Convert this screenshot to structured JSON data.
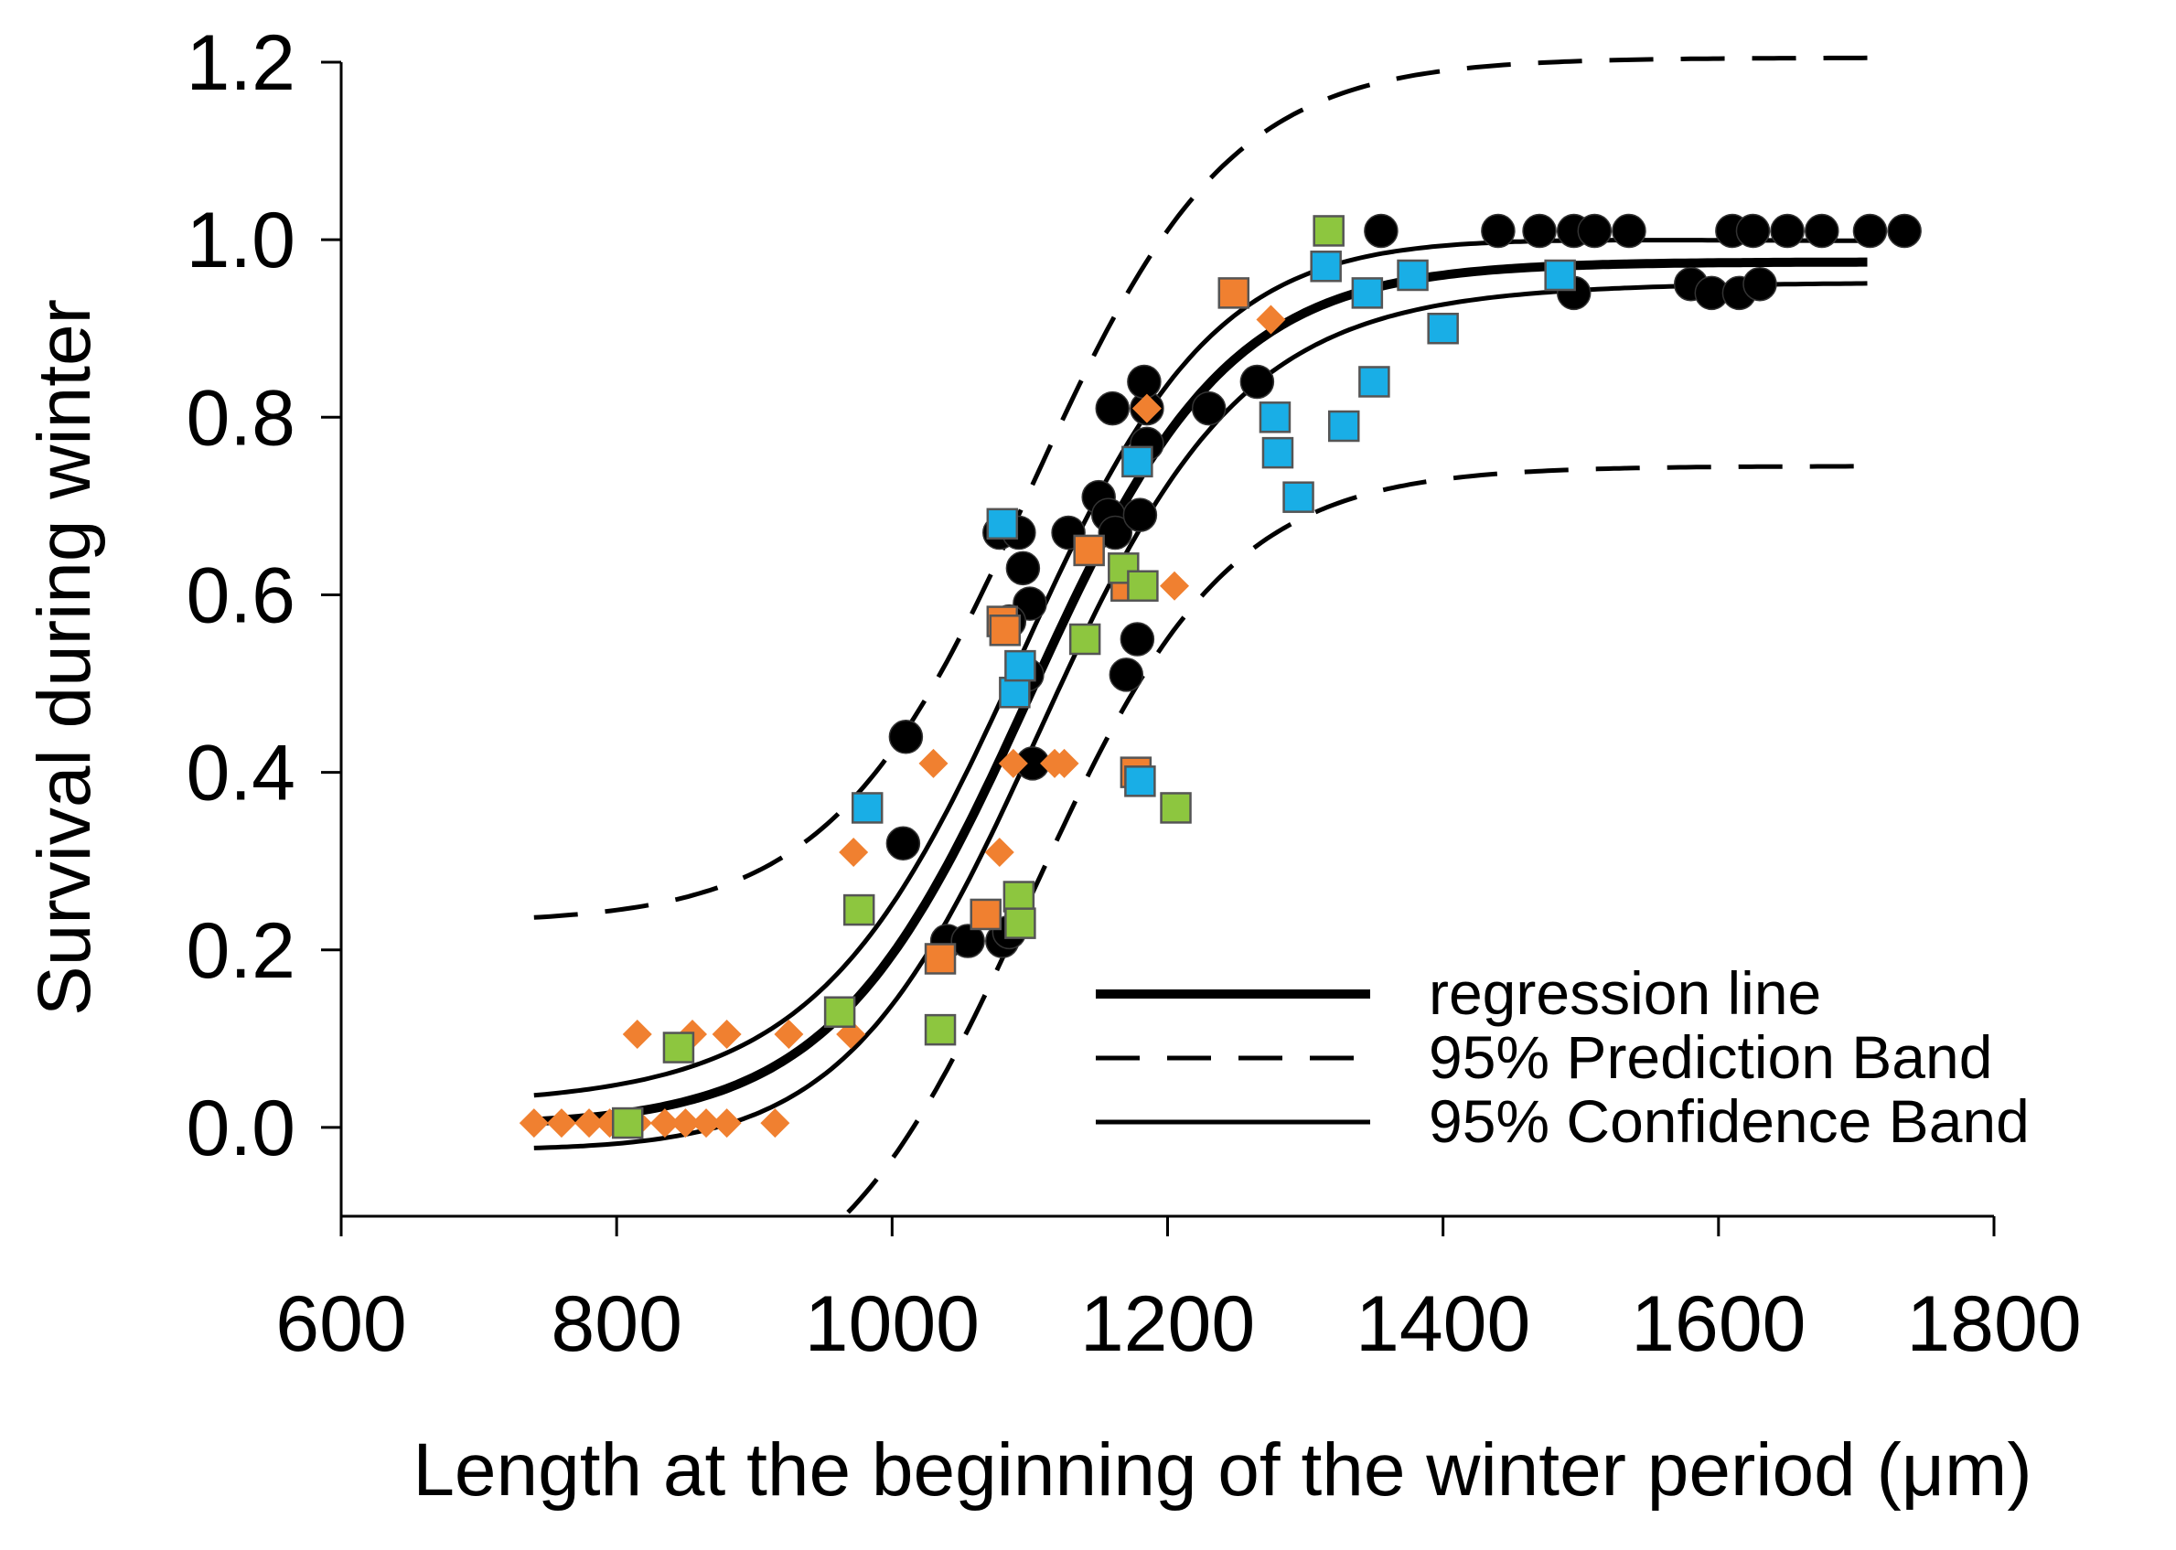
{
  "chart_data": {
    "type": "scatter",
    "title": "",
    "xlabel": "Length at the beginning of the winter period (μm)",
    "ylabel": "Survival during winter",
    "xlim": [
      600,
      1800
    ],
    "ylim": [
      -0.1,
      1.2
    ],
    "xticks": [
      600,
      800,
      1000,
      1200,
      1400,
      1600,
      1800
    ],
    "xtick_labels": [
      "600",
      "800",
      "1000",
      "1200",
      "1400",
      "1600",
      "1800"
    ],
    "yticks": [
      0.0,
      0.2,
      0.4,
      0.6,
      0.8,
      1.0,
      1.2
    ],
    "ytick_labels": [
      "0.0",
      "0.2",
      "0.4",
      "0.6",
      "0.8",
      "1.0",
      "1.2"
    ],
    "grid": false,
    "legend_position": "bottom-right",
    "legend": [
      {
        "label": "regression line",
        "style": "thick-solid"
      },
      {
        "label": "95% Prediction Band",
        "style": "dashed"
      },
      {
        "label": "95% Confidence Band",
        "style": "solid"
      }
    ],
    "colors": {
      "black": "#000000",
      "orange": "#f08030",
      "blue": "#19aee6",
      "green": "#8dc63f",
      "outline": "#555555"
    },
    "regression": {
      "model": "logistic",
      "x_range": [
        740,
        1710
      ],
      "asymptote": 0.975,
      "midpoint": 1100,
      "scale": 72,
      "confidence_offset": 0.065,
      "prediction_offset": 0.23,
      "dash_pattern": [
        48,
        30
      ]
    },
    "series": [
      {
        "name": "black circles",
        "marker": "circle",
        "color": "#000000",
        "points": [
          [
            1010,
            0.44
          ],
          [
            1008,
            0.32
          ],
          [
            1040,
            0.21
          ],
          [
            1055,
            0.21
          ],
          [
            1080,
            0.21
          ],
          [
            1085,
            0.22
          ],
          [
            1078,
            0.67
          ],
          [
            1092,
            0.67
          ],
          [
            1095,
            0.63
          ],
          [
            1100,
            0.59
          ],
          [
            1085,
            0.57
          ],
          [
            1098,
            0.51
          ],
          [
            1102,
            0.41
          ],
          [
            1128,
            0.67
          ],
          [
            1150,
            0.71
          ],
          [
            1157,
            0.69
          ],
          [
            1162,
            0.67
          ],
          [
            1160,
            0.81
          ],
          [
            1170,
            0.51
          ],
          [
            1178,
            0.55
          ],
          [
            1180,
            0.69
          ],
          [
            1185,
            0.77
          ],
          [
            1185,
            0.81
          ],
          [
            1183,
            0.84
          ],
          [
            1230,
            0.81
          ],
          [
            1265,
            0.84
          ],
          [
            1355,
            1.01
          ],
          [
            1440,
            1.01
          ],
          [
            1470,
            1.01
          ],
          [
            1495,
            1.01
          ],
          [
            1510,
            1.01
          ],
          [
            1535,
            1.01
          ],
          [
            1495,
            0.94
          ],
          [
            1580,
            0.95
          ],
          [
            1595,
            0.94
          ],
          [
            1610,
            1.01
          ],
          [
            1625,
            1.01
          ],
          [
            1650,
            1.01
          ],
          [
            1675,
            1.01
          ],
          [
            1710,
            1.01
          ],
          [
            1735,
            1.01
          ],
          [
            1615,
            0.94
          ],
          [
            1630,
            0.95
          ]
        ]
      },
      {
        "name": "orange diamonds",
        "marker": "diamond",
        "color": "#f08030",
        "points": [
          [
            740,
            0.005
          ],
          [
            760,
            0.005
          ],
          [
            780,
            0.005
          ],
          [
            795,
            0.005
          ],
          [
            815,
            0.005
          ],
          [
            835,
            0.005
          ],
          [
            850,
            0.005
          ],
          [
            865,
            0.005
          ],
          [
            880,
            0.005
          ],
          [
            915,
            0.005
          ],
          [
            815,
            0.105
          ],
          [
            855,
            0.105
          ],
          [
            880,
            0.105
          ],
          [
            925,
            0.105
          ],
          [
            970,
            0.105
          ],
          [
            972,
            0.31
          ],
          [
            1030,
            0.41
          ],
          [
            1078,
            0.31
          ],
          [
            1088,
            0.41
          ],
          [
            1118,
            0.41
          ],
          [
            1125,
            0.41
          ],
          [
            1185,
            0.81
          ],
          [
            1205,
            0.61
          ],
          [
            1275,
            0.91
          ]
        ]
      },
      {
        "name": "orange squares",
        "marker": "square",
        "color": "#f08030",
        "points": [
          [
            1035,
            0.19
          ],
          [
            1068,
            0.24
          ],
          [
            1080,
            0.57
          ],
          [
            1082,
            0.56
          ],
          [
            1143,
            0.65
          ],
          [
            1170,
            0.61
          ],
          [
            1177,
            0.4
          ],
          [
            1248,
            0.94
          ]
        ]
      },
      {
        "name": "blue squares",
        "marker": "square",
        "color": "#19aee6",
        "points": [
          [
            982,
            0.36
          ],
          [
            1080,
            0.68
          ],
          [
            1089,
            0.49
          ],
          [
            1093,
            0.52
          ],
          [
            1178,
            0.75
          ],
          [
            1180,
            0.39
          ],
          [
            1278,
            0.8
          ],
          [
            1280,
            0.76
          ],
          [
            1295,
            0.71
          ],
          [
            1315,
            0.97
          ],
          [
            1328,
            0.79
          ],
          [
            1345,
            0.94
          ],
          [
            1350,
            0.84
          ],
          [
            1378,
            0.96
          ],
          [
            1400,
            0.9
          ],
          [
            1485,
            0.96
          ]
        ]
      },
      {
        "name": "green squares",
        "marker": "square",
        "color": "#8dc63f",
        "points": [
          [
            808,
            0.005
          ],
          [
            845,
            0.09
          ],
          [
            962,
            0.13
          ],
          [
            976,
            0.245
          ],
          [
            1035,
            0.11
          ],
          [
            1092,
            0.26
          ],
          [
            1093,
            0.23
          ],
          [
            1140,
            0.55
          ],
          [
            1168,
            0.63
          ],
          [
            1182,
            0.61
          ],
          [
            1206,
            0.36
          ],
          [
            1317,
            1.01
          ]
        ]
      }
    ]
  }
}
